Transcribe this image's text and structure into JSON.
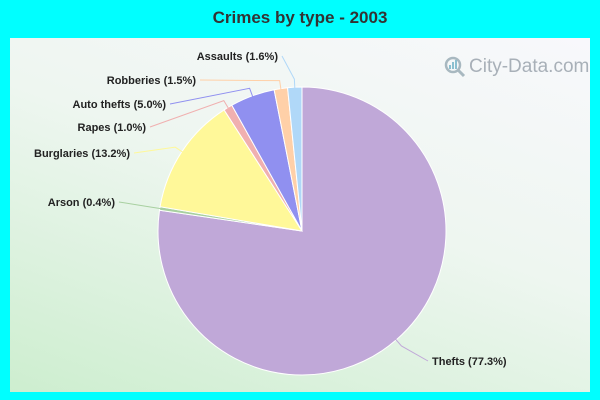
{
  "chart_data": {
    "type": "pie",
    "title": "Crimes by type - 2003",
    "start_angle_deg": 0,
    "direction": "clockwise",
    "slices": [
      {
        "label": "Thefts (77.3%)",
        "name": "Thefts",
        "value": 77.3,
        "color": "#c0a8d8"
      },
      {
        "label": "Arson (0.4%)",
        "name": "Arson",
        "value": 0.4,
        "color": "#a8d0a0"
      },
      {
        "label": "Burglaries (13.2%)",
        "name": "Burglaries",
        "value": 13.2,
        "color": "#fff899"
      },
      {
        "label": "Rapes (1.0%)",
        "name": "Rapes",
        "value": 1.0,
        "color": "#f0b0b0"
      },
      {
        "label": "Auto thefts (5.0%)",
        "name": "Auto thefts",
        "value": 5.0,
        "color": "#9090f0"
      },
      {
        "label": "Robberies (1.5%)",
        "name": "Robberies",
        "value": 1.5,
        "color": "#ffd0a8"
      },
      {
        "label": "Assaults (1.6%)",
        "name": "Assaults",
        "value": 1.6,
        "color": "#b0d8f8"
      }
    ]
  },
  "watermark": "City-Data.com",
  "colors": {
    "frame": "#00ffff"
  }
}
